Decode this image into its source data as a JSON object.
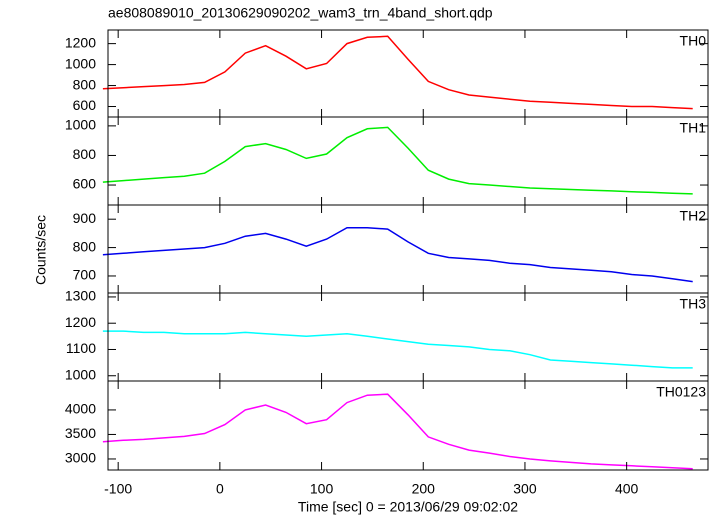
{
  "chart_data": [
    {
      "type": "line",
      "title": "ae808089010_20130629090202_wam3_trn_4band_short.qdp",
      "x": [
        -115,
        -95,
        -75,
        -55,
        -35,
        -15,
        5,
        25,
        45,
        65,
        85,
        105,
        125,
        145,
        165,
        185,
        205,
        225,
        245,
        265,
        285,
        305,
        325,
        345,
        365,
        385,
        405,
        425,
        445,
        465
      ],
      "series": [
        {
          "name": "TH0",
          "color": "#ff0000",
          "values": [
            770,
            780,
            790,
            800,
            810,
            830,
            930,
            1110,
            1180,
            1080,
            960,
            1010,
            1200,
            1260,
            1270,
            1050,
            840,
            760,
            710,
            690,
            670,
            650,
            640,
            630,
            620,
            610,
            600,
            600,
            590,
            580
          ]
        }
      ],
      "ylim": [
        500,
        1330
      ],
      "yticks": [
        600,
        800,
        1000,
        1200
      ]
    },
    {
      "type": "line",
      "x": [
        -115,
        -95,
        -75,
        -55,
        -35,
        -15,
        5,
        25,
        45,
        65,
        85,
        105,
        125,
        145,
        165,
        185,
        205,
        225,
        245,
        265,
        285,
        305,
        325,
        345,
        365,
        385,
        405,
        425,
        445,
        465
      ],
      "series": [
        {
          "name": "TH1",
          "color": "#00ee00",
          "values": [
            620,
            630,
            640,
            650,
            660,
            680,
            760,
            860,
            880,
            840,
            780,
            810,
            920,
            980,
            990,
            850,
            700,
            640,
            610,
            600,
            590,
            580,
            575,
            570,
            565,
            560,
            555,
            550,
            545,
            540
          ]
        }
      ],
      "ylim": [
        465,
        1060
      ],
      "yticks": [
        600,
        800,
        1000
      ]
    },
    {
      "type": "line",
      "ylabel": "Counts/sec",
      "x": [
        -115,
        -95,
        -75,
        -55,
        -35,
        -15,
        5,
        25,
        45,
        65,
        85,
        105,
        125,
        145,
        165,
        185,
        205,
        225,
        245,
        265,
        285,
        305,
        325,
        345,
        365,
        385,
        405,
        425,
        445,
        465
      ],
      "series": [
        {
          "name": "TH2",
          "color": "#0000ee",
          "values": [
            775,
            780,
            785,
            790,
            795,
            800,
            815,
            840,
            850,
            830,
            805,
            830,
            870,
            870,
            865,
            820,
            780,
            765,
            760,
            755,
            745,
            740,
            730,
            725,
            720,
            715,
            705,
            700,
            690,
            680
          ]
        }
      ],
      "ylim": [
        640,
        950
      ],
      "yticks": [
        700,
        800,
        900
      ]
    },
    {
      "type": "line",
      "x": [
        -115,
        -95,
        -75,
        -55,
        -35,
        -15,
        5,
        25,
        45,
        65,
        85,
        105,
        125,
        145,
        165,
        185,
        205,
        225,
        245,
        265,
        285,
        305,
        325,
        345,
        365,
        385,
        405,
        425,
        445,
        465
      ],
      "series": [
        {
          "name": "TH3",
          "color": "#00ffff",
          "values": [
            1170,
            1170,
            1165,
            1165,
            1160,
            1160,
            1160,
            1165,
            1160,
            1155,
            1150,
            1155,
            1160,
            1150,
            1140,
            1130,
            1120,
            1115,
            1110,
            1100,
            1095,
            1080,
            1060,
            1055,
            1050,
            1045,
            1040,
            1035,
            1030,
            1030
          ]
        }
      ],
      "ylim": [
        980,
        1315
      ],
      "yticks": [
        1000,
        1100,
        1200,
        1300
      ]
    },
    {
      "type": "line",
      "xlabel": "Time [sec] 0 = 2013/06/29 09:02:02",
      "x": [
        -115,
        -95,
        -75,
        -55,
        -35,
        -15,
        5,
        25,
        45,
        65,
        85,
        105,
        125,
        145,
        165,
        185,
        205,
        225,
        245,
        265,
        285,
        305,
        325,
        345,
        365,
        385,
        405,
        425,
        445,
        465
      ],
      "series": [
        {
          "name": "TH0123",
          "color": "#ff00ff",
          "values": [
            3350,
            3380,
            3400,
            3430,
            3460,
            3520,
            3700,
            4000,
            4100,
            3950,
            3720,
            3800,
            4150,
            4300,
            4320,
            3900,
            3450,
            3300,
            3180,
            3120,
            3050,
            3000,
            2960,
            2930,
            2900,
            2880,
            2860,
            2840,
            2820,
            2800
          ]
        }
      ],
      "ylim": [
        2775,
        4590
      ],
      "yticks": [
        3000,
        3500,
        4000
      ],
      "xlim": [
        -110,
        480
      ],
      "xticks": [
        -100,
        0,
        100,
        200,
        300,
        400
      ]
    }
  ]
}
